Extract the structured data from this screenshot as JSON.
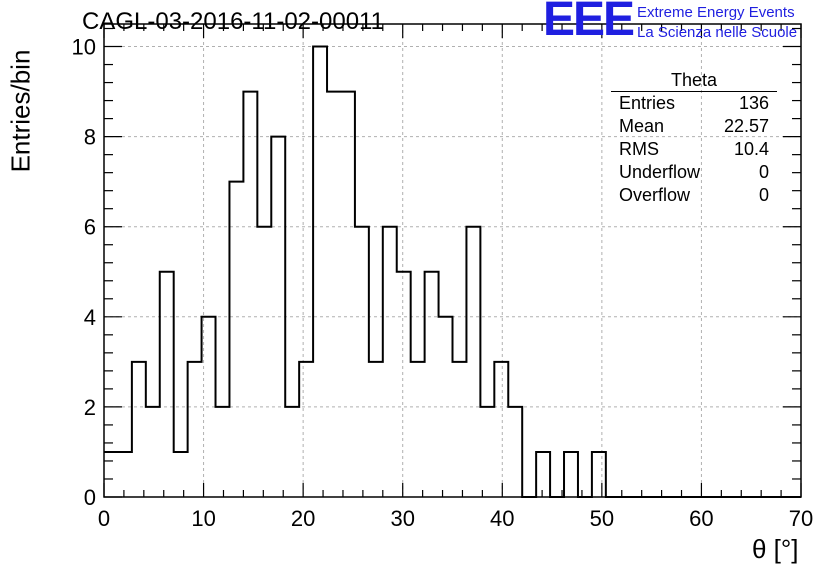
{
  "header": {
    "title": "CAGL-03-2016-11-02-00011",
    "logo_text": "EEE",
    "logo_line1": "Extreme Energy Events",
    "logo_line2": "La Scienza nelle Scuole"
  },
  "stats_box": {
    "title": "Theta",
    "rows": [
      {
        "label": "Entries",
        "value": "136"
      },
      {
        "label": "Mean",
        "value": "22.57"
      },
      {
        "label": "RMS",
        "value": "10.4"
      },
      {
        "label": "Underflow",
        "value": "0"
      },
      {
        "label": "Overflow",
        "value": "0"
      }
    ]
  },
  "chart_data": {
    "type": "bar",
    "title": "CAGL-03-2016-11-02-00011",
    "xlabel": "θ [°]",
    "ylabel": "Entries/bin",
    "xlim": [
      0,
      70
    ],
    "ylim": [
      0,
      10.5
    ],
    "grid": true,
    "bin_width": 1.4,
    "values": [
      1,
      1,
      3,
      2,
      5,
      1,
      3,
      4,
      2,
      7,
      9,
      6,
      8,
      2,
      3,
      10,
      9,
      9,
      6,
      3,
      6,
      5,
      3,
      5,
      4,
      3,
      6,
      2,
      3,
      2,
      0,
      1,
      0,
      1,
      0,
      1,
      0,
      0,
      0,
      0,
      0,
      0,
      0,
      0,
      0,
      0,
      0,
      0,
      0,
      0
    ],
    "xticks": [
      "0",
      "10",
      "20",
      "30",
      "40",
      "50",
      "60",
      "70"
    ],
    "yticks": [
      "0",
      "2",
      "4",
      "6",
      "8",
      "10"
    ],
    "colors": {
      "line": "#000000",
      "grid": "#b0b0b0",
      "logo": "#1f1fe0"
    }
  }
}
